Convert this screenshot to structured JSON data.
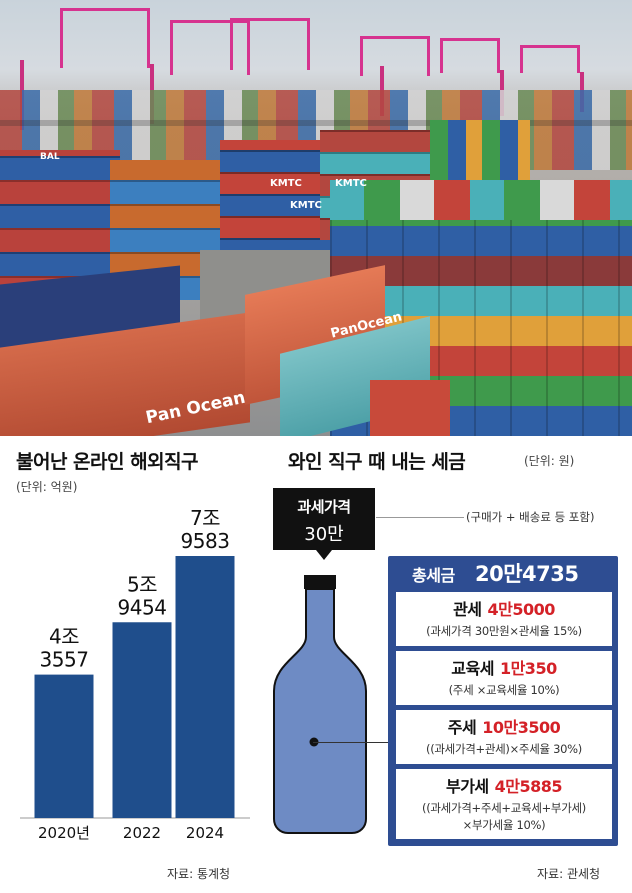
{
  "left_chart": {
    "title": "불어난 온라인 해외직구",
    "unit": "(단위: 억원)",
    "source": "자료: 통계청"
  },
  "chart_data": {
    "type": "bar",
    "categories": [
      "2020년",
      "2022",
      "2024"
    ],
    "values": [
      43557,
      59454,
      79583
    ],
    "value_labels": [
      [
        "4조",
        "3557"
      ],
      [
        "5조",
        "9454"
      ],
      [
        "7조",
        "9583"
      ]
    ],
    "color": "#1f4e8c"
  },
  "right_panel": {
    "title": "와인 직구 때 내는 세금",
    "unit": "(단위: 원)",
    "price_tag": {
      "line1": "과세가격",
      "line2": "30만"
    },
    "price_note": "(구매가 + 배송료 등 포함)",
    "total": {
      "label": "총세금",
      "value": "20만4735"
    },
    "taxes": [
      {
        "name": "관세",
        "amount": "4만5000",
        "formula": [
          "(과세가격 30만원×관세율 15%)"
        ]
      },
      {
        "name": "교육세",
        "amount": "1만350",
        "formula": [
          "(주세 ×교육세율 10%)"
        ]
      },
      {
        "name": "주세",
        "amount": "10만3500",
        "formula": [
          "((과세가격+관세)×주세율 30%)"
        ]
      },
      {
        "name": "부가세",
        "amount": "4만5885",
        "formula": [
          "((과세가격+주세+교육세+부가세)",
          "×부가세율 10%)"
        ]
      }
    ],
    "source": "자료: 관세청",
    "colors": {
      "panel": "#2e4d92",
      "amount": "#d42127",
      "bottle": "#6e8bc4"
    }
  },
  "photo": {
    "container_labels": [
      "Pan Ocean",
      "PanOcean",
      "KMTC",
      "KMTC",
      "KMTC",
      "BAL"
    ],
    "colors": [
      "#c3443a",
      "#2f5fa5",
      "#3f9a4c",
      "#e0a03a",
      "#8a3a3a",
      "#4ab0b8",
      "#d9d9d9",
      "#b25a2b"
    ]
  }
}
